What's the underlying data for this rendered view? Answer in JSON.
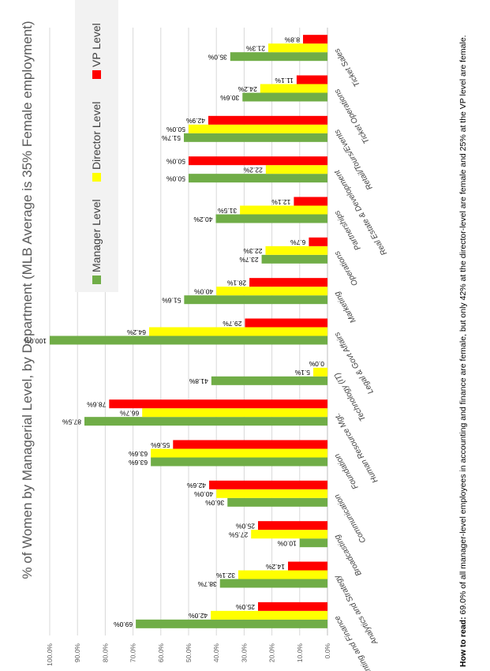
{
  "chart_data": {
    "type": "bar",
    "title": "% of Women by Managerial Level, by Department (MLB Average is 35% Female employment)",
    "categories": [
      "Accounting and Finance",
      "Analytics and Strategy",
      "Broadcasting",
      "Communication",
      "Foundation",
      "Human Resource Mgt.",
      "Technology (IT)",
      "Legal & Govt Affairs",
      "Marketing",
      "Operations",
      "Partnerships",
      "Real Estate & Development",
      "Retail/Tours/Events",
      "Ticket Operations",
      "Ticket Sales"
    ],
    "series": [
      {
        "name": "Manager Level",
        "color": "#70ad47",
        "values": [
          69.0,
          38.7,
          10.0,
          36.0,
          63.6,
          87.5,
          41.8,
          100.0,
          51.6,
          23.7,
          40.2,
          50.0,
          51.7,
          30.6,
          35.0
        ]
      },
      {
        "name": "Director Level",
        "color": "#ffff00",
        "values": [
          42.0,
          32.1,
          27.5,
          40.0,
          63.6,
          66.7,
          5.1,
          64.2,
          40.0,
          22.3,
          31.5,
          22.2,
          50.0,
          24.2,
          21.3
        ]
      },
      {
        "name": "VP Level",
        "color": "#ff0000",
        "values": [
          25.0,
          14.2,
          25.0,
          42.6,
          55.6,
          78.6,
          0.0,
          29.7,
          28.1,
          6.7,
          12.1,
          50.0,
          42.9,
          11.1,
          8.8
        ]
      }
    ],
    "value_labels": [
      [
        "69.0%",
        "38.7%",
        "10.0%",
        "36.0%",
        "63.6%",
        "87.5%",
        "41.8%",
        "100.0%",
        "51.6%",
        "23.7%",
        "40.2%",
        "50.0%",
        "51.7%",
        "30.6%",
        "35.0%"
      ],
      [
        "42.0%",
        "32.1%",
        "27.5%",
        "40.0%",
        "63.6%",
        "66.7%",
        "5.1%",
        "64.2%",
        "40.0%",
        "22.3%",
        "31.5%",
        "22.2%",
        "50.0%",
        "24.2%",
        "21.3%"
      ],
      [
        "25.0%",
        "14.2%",
        "25.0%",
        "42.6%",
        "55.6%",
        "78.6%",
        "0.0%",
        "29.7%",
        "28.1%",
        "6.7%",
        "12.1%",
        "50.0%",
        "42.9%",
        "11.1%",
        "8.8%"
      ]
    ],
    "yticks": [
      "0.0%",
      "10.0%",
      "20.0%",
      "30.0%",
      "40.0%",
      "50.0%",
      "60.0%",
      "70.0%",
      "80.0%",
      "90.0%",
      "100.0%"
    ],
    "ylim": [
      0,
      100
    ],
    "grid": true,
    "legend_position": "top",
    "orientation": "rotated 90 degrees counter-clockwise",
    "footnote_bold": "How to read:",
    "footnote": " 69.0% of all manager-level employees in accounting and finance are female, but only 42% at the director-level are female and 25% at the VP level are female."
  }
}
